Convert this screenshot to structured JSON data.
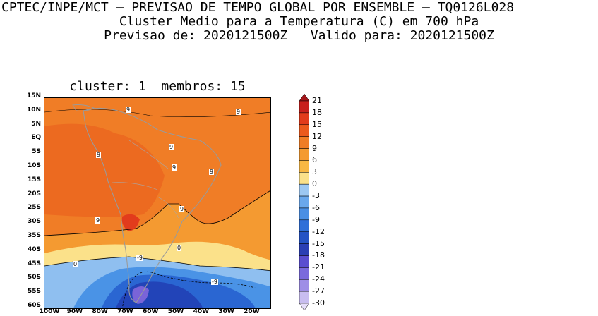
{
  "header": {
    "line1": "CPTEC/INPE/MCT — PREVISAO DE TEMPO GLOBAL POR ENSEMBLE — TQ0126L028",
    "line2": "Cluster Medio para a Temperatura (C) em 700 hPa",
    "line3": "Previsao de: 2020121500Z   Valido para: 2020121500Z"
  },
  "panel": {
    "title": "cluster: 1  membros: 15"
  },
  "map": {
    "lat_labels": [
      "15N",
      "10N",
      "5N",
      "EQ",
      "5S",
      "10S",
      "15S",
      "20S",
      "25S",
      "30S",
      "35S",
      "40S",
      "45S",
      "50S",
      "55S",
      "60S"
    ],
    "lon_labels": [
      "100W",
      "90W",
      "80W",
      "70W",
      "60W",
      "50W",
      "40W",
      "30W",
      "20W"
    ],
    "contour_labels": [
      "9",
      "9",
      "9",
      "9",
      "9",
      "9",
      "9",
      "9",
      "0",
      "0",
      "-9",
      "-9"
    ],
    "colors": {
      "deep_orange": "#e8601e",
      "orange": "#f07d26",
      "light_orange": "#f8a43c",
      "yellow": "#fbe18a",
      "light_blue": "#8fbff0",
      "mid_blue": "#4a93e6",
      "blue": "#2a66d2",
      "dark_blue": "#2244b8",
      "violet": "#7a64d8"
    }
  },
  "colorbar": {
    "labels": [
      "21",
      "18",
      "15",
      "12",
      "9",
      "6",
      "3",
      "0",
      "-3",
      "-6",
      "-9",
      "-12",
      "-15",
      "-18",
      "-21",
      "-24",
      "-27",
      "-30"
    ],
    "colors": [
      "#a4161a",
      "#c8201d",
      "#e23b1c",
      "#ec5a1d",
      "#f07d26",
      "#f49a31",
      "#f8b844",
      "#fbe18a",
      "#9dc8f2",
      "#6aa8ec",
      "#4a8fe4",
      "#2f6fd8",
      "#2453c4",
      "#2a3fb4",
      "#5a4ed0",
      "#7a6adc",
      "#9e8ee6",
      "#c8bdf0",
      "#e6defa"
    ]
  }
}
